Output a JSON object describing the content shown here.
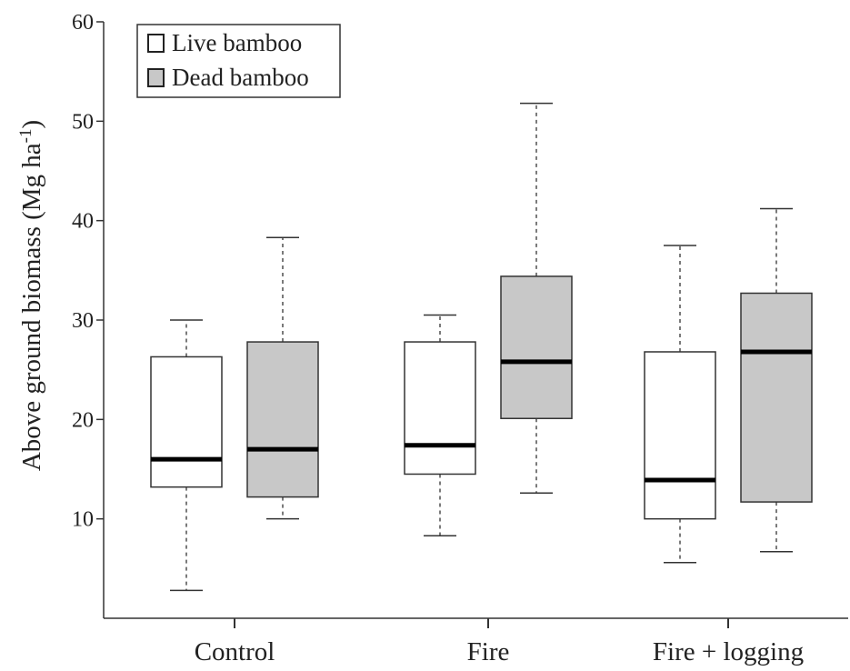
{
  "chart_data": {
    "type": "box",
    "ylabel": "Above ground biomass (Mg ha",
    "ylabel_sup": "-1",
    "ylabel_close": ")",
    "ylim": [
      0,
      60
    ],
    "yticks": [
      10,
      20,
      30,
      40,
      50,
      60
    ],
    "categories": [
      "Control",
      "Fire",
      "Fire + logging"
    ],
    "legend": {
      "placement": "top-left",
      "entries": [
        {
          "label": "Live bamboo",
          "fill": "#ffffff"
        },
        {
          "label": "Dead bamboo",
          "fill": "#c8c8c8"
        }
      ]
    },
    "series": [
      {
        "name": "Live bamboo",
        "fill": "#ffffff",
        "boxes": [
          {
            "whisker_low": 2.8,
            "q1": 13.2,
            "median": 16.0,
            "q3": 26.3,
            "whisker_high": 30.0
          },
          {
            "whisker_low": 8.3,
            "q1": 14.5,
            "median": 17.4,
            "q3": 27.8,
            "whisker_high": 30.5
          },
          {
            "whisker_low": 5.6,
            "q1": 10.0,
            "median": 13.9,
            "q3": 26.8,
            "whisker_high": 37.5
          }
        ]
      },
      {
        "name": "Dead bamboo",
        "fill": "#c8c8c8",
        "boxes": [
          {
            "whisker_low": 10.0,
            "q1": 12.2,
            "median": 17.0,
            "q3": 27.8,
            "whisker_high": 38.3
          },
          {
            "whisker_low": 12.6,
            "q1": 20.1,
            "median": 25.8,
            "q3": 34.4,
            "whisker_high": 51.8
          },
          {
            "whisker_low": 6.7,
            "q1": 11.7,
            "median": 26.8,
            "q3": 32.7,
            "whisker_high": 41.2
          }
        ]
      }
    ],
    "grid": false
  },
  "colors": {
    "axis": "#333333",
    "median": "#000000"
  }
}
